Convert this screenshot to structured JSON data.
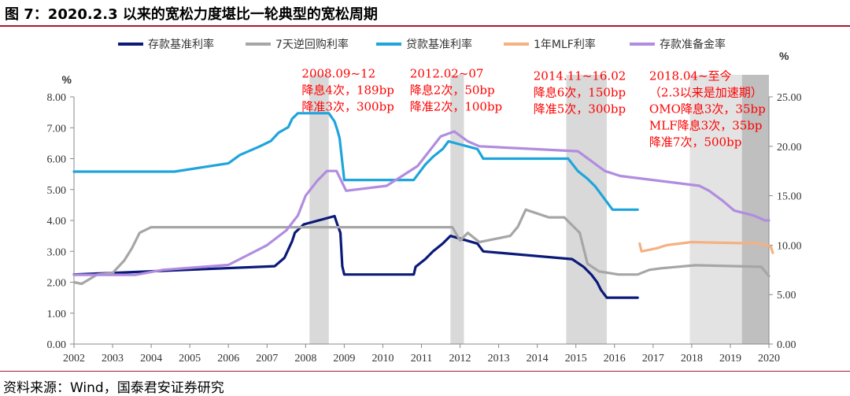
{
  "title": "图 7：2020.2.3 以来的宽松力度堪比一轮典型的宽松周期",
  "source": "资料来源：Wind，国泰君安证券研究",
  "chart_data": {
    "type": "line",
    "x_range": [
      2002,
      2020
    ],
    "x_ticks": [
      "2002",
      "2003",
      "2004",
      "2005",
      "2006",
      "2007",
      "2008",
      "2009",
      "2010",
      "2011",
      "2012",
      "2013",
      "2014",
      "2015",
      "2016",
      "2017",
      "2018",
      "2019",
      "2020"
    ],
    "y_left": {
      "unit": "%",
      "range": [
        0,
        8
      ],
      "ticks": [
        "0.00",
        "1.00",
        "2.00",
        "3.00",
        "4.00",
        "5.00",
        "6.00",
        "7.00",
        "8.00"
      ]
    },
    "y_right": {
      "unit": "%",
      "range": [
        0,
        25
      ],
      "ticks": [
        "0.00",
        "5.00",
        "10.00",
        "15.00",
        "20.00",
        "25.00"
      ]
    },
    "grid": false,
    "legend_position": "top",
    "shaded_periods": [
      {
        "from": 2008.1,
        "to": 2008.6,
        "color": "#d9d9d9"
      },
      {
        "from": 2011.75,
        "to": 2012.1,
        "color": "#d9d9d9"
      },
      {
        "from": 2014.75,
        "to": 2015.8,
        "color": "#d9d9d9"
      },
      {
        "from": 2017.95,
        "to": 2019.3,
        "color": "#e3e3e3"
      },
      {
        "from": 2019.3,
        "to": 2020.05,
        "color": "#bfbfbf"
      }
    ],
    "series": [
      {
        "name": "存款基准利率",
        "axis": "left",
        "color": "#0b1a78",
        "points": [
          [
            2002,
            2.25
          ],
          [
            2007.2,
            2.52
          ],
          [
            2007.45,
            2.79
          ],
          [
            2007.55,
            3.06
          ],
          [
            2007.65,
            3.33
          ],
          [
            2007.72,
            3.6
          ],
          [
            2007.95,
            3.87
          ],
          [
            2008.75,
            4.14
          ],
          [
            2008.82,
            3.87
          ],
          [
            2008.9,
            3.6
          ],
          [
            2008.95,
            2.52
          ],
          [
            2009.0,
            2.25
          ],
          [
            2010.8,
            2.25
          ],
          [
            2010.85,
            2.5
          ],
          [
            2011.1,
            2.75
          ],
          [
            2011.3,
            3.0
          ],
          [
            2011.55,
            3.25
          ],
          [
            2011.75,
            3.5
          ],
          [
            2012.45,
            3.25
          ],
          [
            2012.6,
            3.0
          ],
          [
            2014.9,
            2.75
          ],
          [
            2015.2,
            2.5
          ],
          [
            2015.4,
            2.25
          ],
          [
            2015.55,
            2.0
          ],
          [
            2015.65,
            1.75
          ],
          [
            2015.8,
            1.5
          ],
          [
            2016.6,
            1.5
          ]
        ]
      },
      {
        "name": "7天逆回购利率",
        "axis": "left",
        "color": "#a6a6a6",
        "points": [
          [
            2002,
            2.0
          ],
          [
            2002.2,
            1.95
          ],
          [
            2002.6,
            2.25
          ],
          [
            2003.0,
            2.3
          ],
          [
            2003.3,
            2.7
          ],
          [
            2003.5,
            3.1
          ],
          [
            2003.7,
            3.6
          ],
          [
            2004.0,
            3.78
          ],
          [
            2011.8,
            3.78
          ],
          [
            2012.0,
            3.35
          ],
          [
            2012.2,
            3.6
          ],
          [
            2012.5,
            3.3
          ],
          [
            2012.9,
            3.4
          ],
          [
            2013.3,
            3.5
          ],
          [
            2013.5,
            3.8
          ],
          [
            2013.7,
            4.35
          ],
          [
            2014.3,
            4.1
          ],
          [
            2014.7,
            4.1
          ],
          [
            2015.1,
            3.6
          ],
          [
            2015.3,
            2.6
          ],
          [
            2015.6,
            2.35
          ],
          [
            2016.1,
            2.25
          ],
          [
            2016.6,
            2.25
          ],
          [
            2016.9,
            2.4
          ],
          [
            2017.2,
            2.45
          ],
          [
            2018.1,
            2.55
          ],
          [
            2019.8,
            2.5
          ],
          [
            2020.0,
            2.2
          ]
        ]
      },
      {
        "name": "贷款基准利率",
        "axis": "left",
        "color": "#1fa4db",
        "points": [
          [
            2002,
            5.58
          ],
          [
            2004.6,
            5.58
          ],
          [
            2006.0,
            5.85
          ],
          [
            2006.3,
            6.12
          ],
          [
            2006.8,
            6.39
          ],
          [
            2007.1,
            6.57
          ],
          [
            2007.3,
            6.84
          ],
          [
            2007.55,
            7.02
          ],
          [
            2007.65,
            7.29
          ],
          [
            2007.8,
            7.47
          ],
          [
            2008.6,
            7.47
          ],
          [
            2008.75,
            7.2
          ],
          [
            2008.82,
            6.93
          ],
          [
            2008.88,
            6.66
          ],
          [
            2009.0,
            5.31
          ],
          [
            2010.8,
            5.31
          ],
          [
            2010.95,
            5.56
          ],
          [
            2011.1,
            5.81
          ],
          [
            2011.3,
            6.06
          ],
          [
            2011.55,
            6.31
          ],
          [
            2011.7,
            6.56
          ],
          [
            2012.45,
            6.31
          ],
          [
            2012.6,
            6.0
          ],
          [
            2014.8,
            6.0
          ],
          [
            2015.05,
            5.6
          ],
          [
            2015.3,
            5.35
          ],
          [
            2015.5,
            5.1
          ],
          [
            2015.65,
            4.85
          ],
          [
            2015.8,
            4.6
          ],
          [
            2015.95,
            4.35
          ],
          [
            2016.6,
            4.35
          ]
        ]
      },
      {
        "name": "1年MLF利率",
        "axis": "left",
        "color": "#f4b183",
        "points": [
          [
            2016.65,
            3.25
          ],
          [
            2016.7,
            3.0
          ],
          [
            2017.1,
            3.1
          ],
          [
            2017.35,
            3.2
          ],
          [
            2018.0,
            3.3
          ],
          [
            2019.8,
            3.25
          ],
          [
            2020.05,
            3.15
          ],
          [
            2020.1,
            2.95
          ]
        ]
      },
      {
        "name": "存款准备金率",
        "axis": "right",
        "color": "#b18ce0",
        "points": [
          [
            2002,
            7.0
          ],
          [
            2003.6,
            7.0
          ],
          [
            2004.3,
            7.5
          ],
          [
            2006.0,
            8.0
          ],
          [
            2006.5,
            9.0
          ],
          [
            2007.0,
            10.0
          ],
          [
            2007.5,
            11.5
          ],
          [
            2007.8,
            13.0
          ],
          [
            2008.0,
            15.0
          ],
          [
            2008.3,
            16.5
          ],
          [
            2008.55,
            17.5
          ],
          [
            2008.8,
            17.5
          ],
          [
            2009.05,
            15.5
          ],
          [
            2010.1,
            16.0
          ],
          [
            2010.5,
            17.0
          ],
          [
            2010.9,
            18.0
          ],
          [
            2011.1,
            19.0
          ],
          [
            2011.3,
            20.0
          ],
          [
            2011.5,
            21.0
          ],
          [
            2011.85,
            21.5
          ],
          [
            2012.2,
            20.5
          ],
          [
            2012.5,
            20.0
          ],
          [
            2015.05,
            19.5
          ],
          [
            2015.4,
            18.5
          ],
          [
            2015.75,
            17.5
          ],
          [
            2016.15,
            17.0
          ],
          [
            2018.2,
            16.0
          ],
          [
            2018.45,
            15.5
          ],
          [
            2018.8,
            14.5
          ],
          [
            2019.1,
            13.5
          ],
          [
            2019.6,
            13.0
          ],
          [
            2019.9,
            12.5
          ],
          [
            2020.0,
            12.5
          ]
        ]
      }
    ],
    "annotations": [
      {
        "lines": [
          "2008.09~12",
          "降息4次，189bp",
          "降准3次，300bp"
        ],
        "x": 2007.9,
        "y": 8.63
      },
      {
        "lines": [
          "2012.02~07",
          "降息2次，50bp",
          "降准2次，100bp"
        ],
        "x": 2010.7,
        "y": 8.63
      },
      {
        "lines": [
          "2014.11~16.02",
          "降息6次，150bp",
          "降准5次，300bp"
        ],
        "x": 2013.9,
        "y": 8.55
      },
      {
        "lines": [
          "2018.04~至今",
          "（2.3以来是加速期）",
          "OMO降息3次，35bp",
          "MLF降息3次，35bp",
          "降准7次，500bp"
        ],
        "x": 2016.9,
        "y": 8.55
      }
    ]
  }
}
